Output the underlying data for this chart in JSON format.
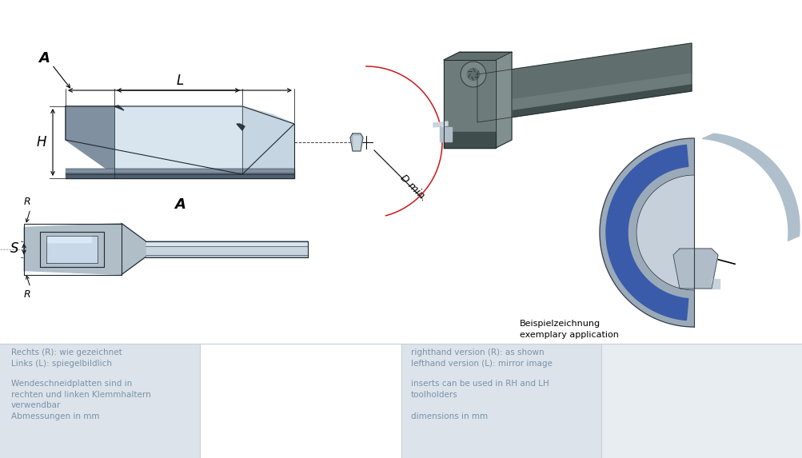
{
  "bg_color": "#ffffff",
  "panel_color_1": "#dce3ea",
  "panel_color_2": "#e8edf2",
  "text_color": "#7a92a8",
  "text_left_1": "Rechts (R): wie gezeichnet\nLinks (L): spiegelbildlich",
  "text_left_2": "Wendeschneidplatten sind in\nrechten und linken Klemmhaltern\nverwendbar\nAbmessungen in mm",
  "text_right_1": "righthand version (R): as shown\nlefthand version (L): mirror image",
  "text_right_2": "inserts can be used in RH and LH\ntoolholders\n\ndimensions in mm",
  "label_L": "L",
  "label_H": "H",
  "label_A_top": "A",
  "label_A_side": "A",
  "label_R_top": "R",
  "label_R_bot": "R",
  "label_S": "S",
  "label_Dmin": "D min.",
  "label_example": "Beispielzeichnung\nexemplary application",
  "ins_top": "#b0bec8",
  "ins_mid": "#c8d5de",
  "ins_light": "#d8e5ee",
  "ins_dark": "#8090a0",
  "ins_vdark": "#505f6e",
  "ins_rface": "#c5d5e2",
  "holder_top": "#616e6e",
  "holder_face": "#6e7b7b",
  "holder_side": "#828f8f",
  "holder_dark": "#404d4d",
  "ring_face": "#9aaab8",
  "ring_top": "#b0bfcc",
  "ring_inner": "#c5d0db",
  "ring_side": "#8898a8",
  "blue_ring": "#3a5baa",
  "blue_dark": "#2a4890"
}
